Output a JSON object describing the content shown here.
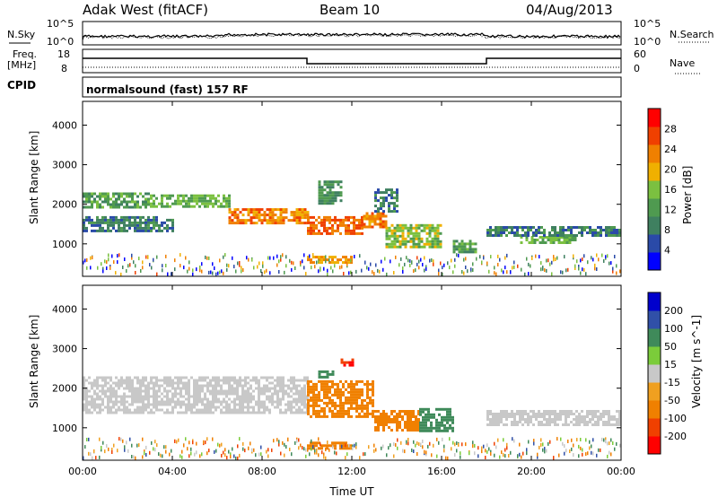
{
  "header": {
    "station": "Adak West (fitACF)",
    "beam": "Beam 10",
    "date": "04/Aug/2013"
  },
  "noise_panel": {
    "left_label": "N.Sky",
    "right_label": "N.Search",
    "ticks": [
      "10^5",
      "10^0"
    ]
  },
  "freq_panel": {
    "left_label_1": "Freq.",
    "left_label_2": "[MHz]",
    "left_ticks": [
      "18",
      "8"
    ],
    "right_label": "Nave",
    "right_ticks": [
      "60",
      "0"
    ]
  },
  "cpid": {
    "label": "CPID",
    "program": "normalsound (fast) 157 RF"
  },
  "colors": {
    "power": [
      "#0000ff",
      "#2a4aa8",
      "#3f8060",
      "#4f9a50",
      "#7bc040",
      "#f0b000",
      "#f08000",
      "#f04000",
      "#ff0000"
    ],
    "velocity": [
      "#0000cc",
      "#3050a8",
      "#3f8a5a",
      "#7bcc3a",
      "#c8c8c8",
      "#f0a020",
      "#f08000",
      "#f04000",
      "#ff0000"
    ]
  },
  "chart_data": [
    {
      "type": "heatmap",
      "name": "power",
      "xlabel": "",
      "ylabel": "Slant Range [km]",
      "x_ticks": [
        "00:00",
        "04:00",
        "08:00",
        "12:00",
        "16:00",
        "20:00",
        "00:00"
      ],
      "x_hours": [
        0,
        4,
        8,
        12,
        16,
        20,
        24
      ],
      "y_ticks": [
        1000,
        2000,
        3000,
        4000
      ],
      "ylim": [
        180,
        4600
      ],
      "colorbar_label": "Power [dB]",
      "colorbar_ticks": [
        4,
        8,
        12,
        16,
        20,
        24,
        28
      ],
      "colorbar_range": [
        0,
        32
      ],
      "features": [
        {
          "t0": 0.0,
          "t1": 3.0,
          "r0": 1950,
          "r1": 2300,
          "level": 14
        },
        {
          "t0": 3.0,
          "t1": 6.5,
          "r0": 1950,
          "r1": 2250,
          "level": 16
        },
        {
          "t0": 0.0,
          "t1": 4.0,
          "r0": 1350,
          "r1": 1700,
          "level": 10
        },
        {
          "t0": 6.5,
          "t1": 10.0,
          "r0": 1500,
          "r1": 1900,
          "level": 26
        },
        {
          "t0": 10.0,
          "t1": 12.5,
          "r0": 1250,
          "r1": 1700,
          "level": 28
        },
        {
          "t0": 12.5,
          "t1": 13.5,
          "r0": 1450,
          "r1": 1800,
          "level": 26
        },
        {
          "t0": 10.0,
          "t1": 12.0,
          "r0": 550,
          "r1": 700,
          "level": 24
        },
        {
          "t0": 13.5,
          "t1": 16.0,
          "r0": 900,
          "r1": 1500,
          "level": 18
        },
        {
          "t0": 16.5,
          "t1": 17.5,
          "r0": 800,
          "r1": 1100,
          "level": 14
        },
        {
          "t0": 19.5,
          "t1": 22.0,
          "r0": 1000,
          "r1": 1200,
          "level": 16
        },
        {
          "t0": 18.0,
          "t1": 24.0,
          "r0": 1200,
          "r1": 1450,
          "level": 10
        },
        {
          "t0": 13.0,
          "t1": 14.0,
          "r0": 1800,
          "r1": 2400,
          "level": 10
        },
        {
          "t0": 10.5,
          "t1": 11.5,
          "r0": 2000,
          "r1": 2600,
          "level": 12
        }
      ]
    },
    {
      "type": "heatmap",
      "name": "velocity",
      "xlabel": "Time UT",
      "ylabel": "Slant Range [km]",
      "x_ticks": [
        "00:00",
        "04:00",
        "08:00",
        "12:00",
        "16:00",
        "20:00",
        "00:00"
      ],
      "x_hours": [
        0,
        4,
        8,
        12,
        16,
        20,
        24
      ],
      "y_ticks": [
        1000,
        2000,
        3000,
        4000
      ],
      "ylim": [
        180,
        4600
      ],
      "colorbar_label": "Velocity [m s^-1]",
      "colorbar_ticks": [
        200,
        100,
        50,
        15,
        -15,
        -50,
        -100,
        -200
      ],
      "features": [
        {
          "t0": 0.0,
          "t1": 10.0,
          "r0": 1400,
          "r1": 2300,
          "level": 0
        },
        {
          "t0": 10.0,
          "t1": 13.0,
          "r0": 1300,
          "r1": 2200,
          "level": -60
        },
        {
          "t0": 10.0,
          "t1": 12.0,
          "r0": 450,
          "r1": 650,
          "level": -60
        },
        {
          "t0": 13.0,
          "t1": 15.0,
          "r0": 950,
          "r1": 1450,
          "level": -60
        },
        {
          "t0": 15.0,
          "t1": 16.5,
          "r0": 950,
          "r1": 1500,
          "level": 60
        },
        {
          "t0": 18.0,
          "t1": 24.0,
          "r0": 1050,
          "r1": 1450,
          "level": 0
        },
        {
          "t0": 11.5,
          "t1": 12.0,
          "r0": 2600,
          "r1": 2750,
          "level": -200
        },
        {
          "t0": 10.5,
          "t1": 11.2,
          "r0": 2300,
          "r1": 2450,
          "level": 60
        }
      ]
    }
  ]
}
